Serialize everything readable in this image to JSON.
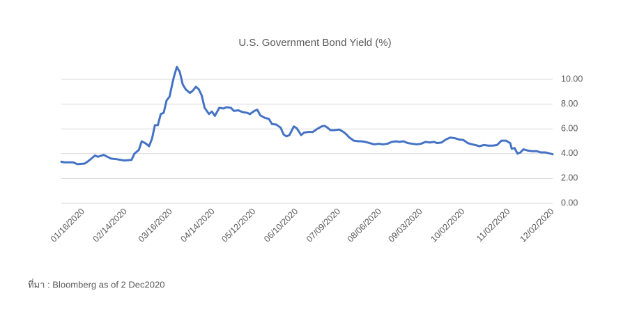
{
  "chart_data": {
    "type": "line",
    "title": "U.S. Government Bond Yield (%)",
    "source": "ที่มา : Bloomberg as of 2 Dec2020",
    "x": [
      "01/01/2020",
      "01/03/2020",
      "01/09/2020",
      "01/12/2020",
      "01/17/2020",
      "01/20/2020",
      "01/24/2020",
      "01/26/2020",
      "01/30/2020",
      "02/04/2020",
      "02/08/2020",
      "02/13/2020",
      "02/18/2020",
      "02/20/2020",
      "02/23/2020",
      "02/25/2020",
      "02/28/2020",
      "03/01/2020",
      "03/03/2020",
      "03/05/2020",
      "03/07/2020",
      "03/09/2020",
      "03/11/2020",
      "03/13/2020",
      "03/15/2020",
      "03/17/2020",
      "03/18/2020",
      "03/20/2020",
      "03/22/2020",
      "03/24/2020",
      "03/26/2020",
      "03/29/2020",
      "03/31/2020",
      "04/02/2020",
      "04/04/2020",
      "04/06/2020",
      "04/08/2020",
      "04/11/2020",
      "04/13/2020",
      "04/15/2020",
      "04/18/2020",
      "04/21/2020",
      "04/23/2020",
      "04/26/2020",
      "04/28/2020",
      "05/01/2020",
      "05/04/2020",
      "05/07/2020",
      "05/09/2020",
      "05/12/2020",
      "05/14/2020",
      "05/16/2020",
      "05/19/2020",
      "05/22/2020",
      "05/24/2020",
      "05/27/2020",
      "05/30/2020",
      "06/01/2020",
      "06/03/2020",
      "06/05/2020",
      "06/08/2020",
      "06/10/2020",
      "06/13/2020",
      "06/15/2020",
      "06/18/2020",
      "06/21/2020",
      "06/24/2020",
      "06/27/2020",
      "06/29/2020",
      "07/01/2020",
      "07/03/2020",
      "07/06/2020",
      "07/09/2020",
      "07/12/2020",
      "07/14/2020",
      "07/16/2020",
      "07/19/2020",
      "07/22/2020",
      "07/24/2020",
      "07/27/2020",
      "07/30/2020",
      "08/02/2020",
      "08/05/2020",
      "08/08/2020",
      "08/11/2020",
      "08/14/2020",
      "08/17/2020",
      "08/19/2020",
      "08/22/2020",
      "08/25/2020",
      "08/28/2020",
      "08/31/2020",
      "09/03/2020",
      "09/06/2020",
      "09/09/2020",
      "09/12/2020",
      "09/14/2020",
      "09/17/2020",
      "09/20/2020",
      "09/23/2020",
      "09/26/2020",
      "09/29/2020",
      "10/02/2020",
      "10/05/2020",
      "10/08/2020",
      "10/10/2020",
      "10/13/2020",
      "10/16/2020",
      "10/19/2020",
      "10/22/2020",
      "10/25/2020",
      "10/28/2020",
      "10/31/2020",
      "11/03/2020",
      "11/04/2020",
      "11/06/2020",
      "11/08/2020",
      "11/10/2020",
      "11/12/2020",
      "11/15/2020",
      "11/18/2020",
      "11/21/2020",
      "11/24/2020",
      "11/27/2020",
      "11/29/2020",
      "12/02/2020"
    ],
    "series": [
      {
        "name": "U.S. Government Bond Yield",
        "color": "#4472c4",
        "values": [
          3.35,
          3.3,
          3.3,
          3.15,
          3.2,
          3.45,
          3.85,
          3.75,
          3.9,
          3.6,
          3.55,
          3.45,
          3.5,
          4.0,
          4.3,
          5.0,
          4.8,
          4.6,
          5.2,
          6.3,
          6.3,
          7.2,
          7.3,
          8.3,
          8.6,
          9.7,
          10.2,
          11.0,
          10.6,
          9.6,
          9.2,
          8.9,
          9.1,
          9.4,
          9.2,
          8.7,
          7.7,
          7.2,
          7.4,
          7.05,
          7.7,
          7.65,
          7.75,
          7.7,
          7.45,
          7.5,
          7.35,
          7.3,
          7.2,
          7.45,
          7.55,
          7.1,
          6.9,
          6.8,
          6.4,
          6.35,
          6.1,
          5.55,
          5.4,
          5.5,
          6.2,
          6.05,
          5.5,
          5.7,
          5.75,
          5.75,
          6.0,
          6.2,
          6.25,
          6.1,
          5.9,
          5.9,
          5.95,
          5.75,
          5.55,
          5.3,
          5.05,
          5.0,
          5.0,
          4.95,
          4.85,
          4.75,
          4.8,
          4.75,
          4.8,
          4.95,
          5.0,
          4.95,
          5.0,
          4.85,
          4.8,
          4.75,
          4.8,
          4.95,
          4.9,
          4.95,
          4.85,
          4.9,
          5.15,
          5.3,
          5.25,
          5.15,
          5.1,
          4.85,
          4.75,
          4.7,
          4.6,
          4.7,
          4.65,
          4.65,
          4.7,
          5.05,
          5.05,
          4.85,
          4.4,
          4.45,
          4.0,
          4.1,
          4.35,
          4.25,
          4.2,
          4.2,
          4.1,
          4.1,
          4.05,
          3.95
        ]
      }
    ],
    "xlim": [
      "01/01/2020",
      "12/02/2020"
    ],
    "xticks": [
      "01/16/2020",
      "02/14/2020",
      "03/16/2020",
      "04/14/2020",
      "05/12/2020",
      "06/10/2020",
      "07/09/2020",
      "08/06/2020",
      "09/03/2020",
      "10/02/2020",
      "11/02/2020",
      "12/02/2020"
    ],
    "ylim": [
      0,
      10
    ],
    "yticks": [
      {
        "value": 0,
        "label": "0.00"
      },
      {
        "value": 2,
        "label": "2.00"
      },
      {
        "value": 4,
        "label": "4.00"
      },
      {
        "value": 6,
        "label": "6.00"
      },
      {
        "value": 8,
        "label": "8.00"
      },
      {
        "value": 10,
        "label": "10.00"
      }
    ],
    "grid": true
  }
}
